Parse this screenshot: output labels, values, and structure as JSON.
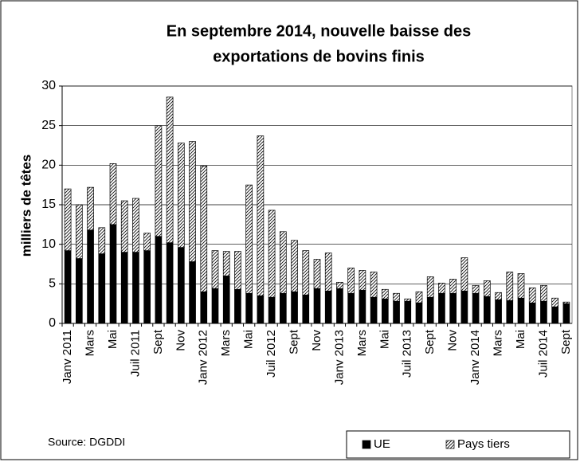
{
  "chart_data": {
    "type": "stacked_bar",
    "title": [
      "En septembre 2014, nouvelle baisse des",
      "exportations de bovins finis"
    ],
    "ylabel": "milliers de têtes",
    "source": "Source: DGDDI",
    "categories": [
      "Janv 2011",
      null,
      "Mars",
      null,
      "Mai",
      null,
      "Juil 2011",
      null,
      "Sept",
      null,
      "Nov",
      null,
      "Janv 2012",
      null,
      "Mars",
      null,
      "Mai",
      null,
      "Juil 2012",
      null,
      "Sept",
      null,
      "Nov",
      null,
      "Janv 2013",
      null,
      "Mars",
      null,
      "Mai",
      null,
      "Juil 2013",
      null,
      "Sept",
      null,
      "Nov",
      null,
      "Janv 2014",
      null,
      "Mars",
      null,
      "Mai",
      null,
      "Juil 2014",
      null,
      "Sept"
    ],
    "series": [
      {
        "name": "UE",
        "color": "#000000",
        "pattern": "solid",
        "values": [
          9.2,
          8.2,
          11.8,
          8.8,
          12.5,
          9.0,
          9.0,
          9.2,
          11.0,
          10.2,
          9.6,
          7.8,
          4.0,
          4.4,
          6.0,
          4.3,
          3.8,
          3.5,
          3.3,
          3.8,
          4.0,
          3.6,
          4.4,
          4.1,
          4.4,
          3.8,
          4.2,
          3.3,
          3.1,
          2.8,
          2.8,
          2.6,
          3.3,
          3.8,
          3.8,
          4.1,
          3.8,
          3.4,
          3.0,
          2.9,
          3.2,
          2.6,
          2.8,
          2.1,
          2.5
        ]
      },
      {
        "name": "Pays tiers",
        "color": "#000000",
        "pattern": "hatch",
        "values": [
          7.8,
          6.8,
          5.4,
          3.3,
          7.7,
          6.5,
          6.8,
          2.2,
          14.0,
          18.4,
          13.2,
          15.2,
          15.9,
          4.8,
          3.1,
          4.8,
          13.7,
          20.2,
          11.0,
          7.8,
          6.5,
          5.6,
          3.7,
          4.8,
          0.8,
          3.2,
          2.5,
          3.2,
          1.2,
          1.0,
          0.3,
          1.4,
          2.6,
          1.3,
          1.8,
          4.2,
          1.0,
          2.0,
          0.9,
          3.6,
          3.1,
          1.9,
          2.0,
          1.1,
          0.2
        ]
      }
    ],
    "ylim": [
      0,
      30
    ],
    "yticks": [
      0,
      5,
      10,
      15,
      20,
      25,
      30
    ],
    "grid": true
  }
}
